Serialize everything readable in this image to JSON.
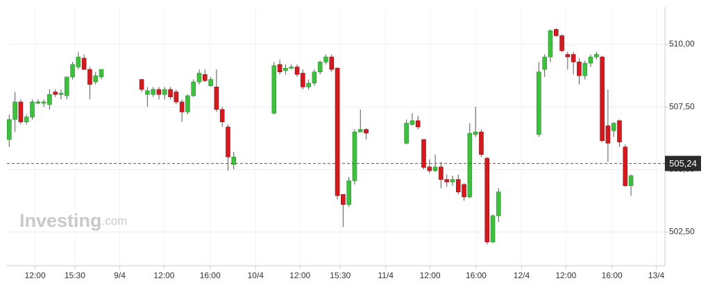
{
  "chart_data": {
    "type": "candlestick",
    "brand": "Investing",
    "brand_suffix": ".com",
    "x": [
      0,
      1,
      2,
      3,
      4,
      5,
      6,
      7,
      8,
      9,
      10,
      11,
      12,
      13,
      14,
      15,
      16,
      23,
      24,
      25,
      26,
      27,
      28,
      29,
      30,
      31,
      32,
      33,
      34,
      35,
      36,
      37,
      38,
      39,
      46,
      47,
      48,
      49,
      50,
      51,
      52,
      53,
      54,
      55,
      56,
      57,
      58,
      59,
      60,
      61,
      62,
      69,
      70,
      71,
      72,
      73,
      74,
      75,
      76,
      77,
      78,
      79,
      80,
      81,
      82,
      83,
      84,
      85,
      92,
      93,
      94,
      95,
      96,
      97,
      98,
      99,
      100,
      101,
      102,
      103,
      104,
      105,
      106,
      107,
      108
    ],
    "open": [
      506.2,
      507.0,
      507.7,
      506.9,
      507.1,
      507.65,
      507.65,
      507.6,
      508.1,
      508.0,
      507.95,
      508.7,
      509.1,
      509.45,
      509.0,
      508.5,
      508.7,
      508.6,
      508.0,
      508.0,
      508.2,
      508.0,
      508.2,
      508.1,
      507.7,
      507.3,
      507.95,
      508.5,
      508.8,
      508.35,
      508.3,
      507.4,
      506.7,
      505.2,
      507.25,
      509.2,
      508.95,
      509.05,
      509.1,
      508.85,
      508.3,
      508.45,
      508.9,
      509.3,
      509.5,
      509.05,
      504.0,
      503.6,
      504.55,
      506.5,
      506.6,
      506.05,
      506.8,
      506.95,
      506.2,
      505.1,
      504.95,
      505.1,
      504.6,
      504.5,
      504.6,
      504.4,
      503.9,
      506.4,
      506.5,
      505.45,
      502.1,
      503.15,
      506.4,
      509.0,
      509.5,
      510.6,
      510.35,
      509.6,
      509.6,
      509.3,
      508.75,
      509.25,
      509.5,
      509.5,
      506.75,
      506.55,
      506.95,
      505.9,
      504.35
    ],
    "high": [
      507.2,
      508.1,
      507.8,
      507.2,
      507.8,
      507.8,
      507.8,
      508.2,
      508.2,
      508.2,
      508.7,
      509.3,
      509.7,
      509.6,
      509.1,
      508.9,
      509.0,
      508.6,
      508.3,
      508.3,
      508.3,
      508.3,
      508.3,
      508.2,
      507.8,
      508.0,
      508.6,
      509.0,
      509.0,
      508.7,
      509.0,
      507.5,
      506.8,
      505.7,
      509.3,
      509.4,
      509.2,
      509.2,
      509.2,
      509.0,
      508.6,
      509.0,
      509.35,
      509.6,
      509.6,
      509.1,
      504.0,
      504.7,
      506.6,
      507.4,
      506.65,
      507.0,
      507.25,
      507.15,
      506.2,
      505.4,
      505.6,
      505.3,
      504.8,
      504.75,
      504.8,
      504.45,
      506.85,
      507.5,
      506.6,
      505.5,
      503.2,
      504.25,
      509.3,
      509.6,
      510.6,
      510.65,
      510.4,
      509.7,
      509.7,
      509.45,
      509.35,
      509.6,
      509.7,
      509.55,
      508.2,
      506.9,
      507.0,
      506.0,
      504.8
    ],
    "low": [
      505.9,
      506.5,
      506.8,
      506.8,
      507.0,
      507.6,
      507.5,
      507.4,
      507.9,
      507.8,
      507.8,
      508.6,
      509.0,
      509.0,
      507.8,
      508.4,
      508.6,
      508.1,
      507.5,
      507.9,
      507.8,
      507.8,
      507.8,
      507.6,
      506.9,
      507.2,
      507.9,
      508.4,
      508.5,
      508.3,
      507.3,
      506.7,
      504.95,
      505.0,
      507.2,
      508.8,
      508.8,
      509.0,
      508.7,
      508.2,
      508.2,
      508.35,
      508.8,
      509.2,
      508.9,
      503.8,
      502.7,
      503.5,
      504.4,
      506.5,
      506.2,
      506.0,
      506.75,
      506.6,
      505.0,
      504.85,
      504.9,
      504.25,
      504.3,
      504.35,
      504.0,
      503.75,
      503.85,
      506.3,
      505.5,
      502.0,
      502.05,
      502.9,
      506.3,
      508.7,
      509.3,
      510.3,
      509.7,
      509.0,
      508.8,
      508.4,
      508.6,
      509.1,
      509.4,
      506.1,
      505.3,
      506.3,
      505.9,
      504.3,
      503.95
    ],
    "close": [
      507.0,
      507.7,
      506.9,
      507.1,
      507.7,
      507.7,
      507.7,
      508.0,
      508.0,
      508.05,
      508.7,
      509.2,
      509.5,
      509.0,
      508.4,
      508.75,
      509.0,
      508.2,
      508.15,
      508.2,
      508.0,
      508.2,
      507.9,
      507.7,
      507.3,
      507.95,
      508.5,
      508.85,
      508.55,
      508.6,
      507.4,
      506.9,
      505.5,
      505.5,
      509.15,
      508.9,
      509.05,
      509.1,
      508.8,
      508.3,
      508.45,
      508.9,
      509.3,
      509.5,
      509.0,
      503.95,
      503.6,
      504.55,
      506.5,
      506.6,
      506.45,
      506.85,
      506.95,
      506.7,
      505.08,
      504.95,
      505.1,
      504.6,
      504.5,
      504.6,
      504.1,
      503.9,
      506.45,
      506.5,
      505.6,
      502.1,
      503.15,
      504.1,
      508.9,
      509.5,
      510.55,
      510.35,
      509.75,
      509.5,
      509.3,
      508.75,
      509.25,
      509.5,
      509.6,
      506.15,
      506.05,
      506.85,
      506.1,
      504.35,
      504.75
    ],
    "up_color": "#3fbf3f",
    "down_color": "#d21a1f",
    "last_price": {
      "value": 505.24,
      "label": "505,24"
    },
    "xlim": [
      -0.4,
      113.9
    ],
    "xticks": [
      {
        "value": 4.5,
        "label": "12:00"
      },
      {
        "value": 11.4,
        "label": "15:30"
      },
      {
        "value": 19.2,
        "label": "9/4"
      },
      {
        "value": 26.9,
        "label": "12:00"
      },
      {
        "value": 34.9,
        "label": "16:00"
      },
      {
        "value": 42.8,
        "label": "10/4"
      },
      {
        "value": 50.5,
        "label": "12:00"
      },
      {
        "value": 57.5,
        "label": "15:30"
      },
      {
        "value": 65.4,
        "label": "11/4"
      },
      {
        "value": 73.1,
        "label": "12:00"
      },
      {
        "value": 81.1,
        "label": "16:00"
      },
      {
        "value": 89.0,
        "label": "12/4"
      },
      {
        "value": 96.7,
        "label": "12:00"
      },
      {
        "value": 104.7,
        "label": "16:00"
      },
      {
        "value": 112.4,
        "label": "13/4"
      }
    ],
    "ylim": [
      501.15,
      511.5
    ],
    "yticks": [
      {
        "value": 502.5,
        "label": "502,50"
      },
      {
        "value": 505,
        "label": "505,00"
      },
      {
        "value": 507.5,
        "label": "507,50"
      },
      {
        "value": 510,
        "label": "510,00"
      }
    ],
    "grid": true
  }
}
